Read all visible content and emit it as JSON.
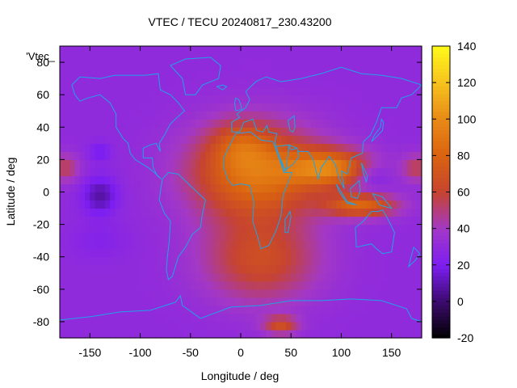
{
  "chart_data": {
    "type": "heatmap",
    "title": "VTEC / TECU 20240817_230.43200",
    "xlabel": "Longitude / deg",
    "ylabel": "Latitude / deg",
    "series_label": "'Vtec_",
    "xlim": [
      -180,
      180
    ],
    "ylim": [
      -90,
      90
    ],
    "x_ticks": [
      -150,
      -100,
      -50,
      0,
      50,
      100,
      150
    ],
    "y_ticks": [
      -80,
      -60,
      -40,
      -20,
      0,
      20,
      40,
      60,
      80
    ],
    "colorbar": {
      "min": -20,
      "max": 140,
      "ticks": [
        -20,
        0,
        20,
        40,
        60,
        80,
        100,
        120,
        140
      ],
      "stops": [
        {
          "value": -20,
          "color": "#000000"
        },
        {
          "value": 0,
          "color": "#3c0a6e"
        },
        {
          "value": 20,
          "color": "#7d1ef2"
        },
        {
          "value": 40,
          "color": "#a338c6"
        },
        {
          "value": 60,
          "color": "#c6442f"
        },
        {
          "value": 80,
          "color": "#d96210"
        },
        {
          "value": 100,
          "color": "#e88a16"
        },
        {
          "value": 120,
          "color": "#f6c21e"
        },
        {
          "value": 140,
          "color": "#fffa1a"
        }
      ]
    },
    "background_vtec": 30,
    "features": [
      {
        "lon": 15,
        "lat": 12,
        "sigma_lon": 45,
        "sigma_lat": 20,
        "value": 60
      },
      {
        "lon": 90,
        "lat": 15,
        "sigma_lon": 28,
        "sigma_lat": 8,
        "value": 55
      },
      {
        "lon": 120,
        "lat": -8,
        "sigma_lon": 25,
        "sigma_lat": 5,
        "value": 50
      },
      {
        "lon": 20,
        "lat": -42,
        "sigma_lon": 40,
        "sigma_lat": 18,
        "value": 35
      },
      {
        "lon": 0,
        "lat": 30,
        "sigma_lon": 20,
        "sigma_lat": 10,
        "value": 20
      },
      {
        "lon": 40,
        "lat": -82,
        "sigma_lon": 12,
        "sigma_lat": 4,
        "value": 35
      },
      {
        "lon": -175,
        "lat": 15,
        "sigma_lon": 10,
        "sigma_lat": 6,
        "value": 25
      },
      {
        "lon": 175,
        "lat": 15,
        "sigma_lon": 10,
        "sigma_lat": 6,
        "value": 25
      },
      {
        "lon": -140,
        "lat": -2,
        "sigma_lon": 12,
        "sigma_lat": 8,
        "value": -22
      },
      {
        "lon": -140,
        "lat": 25,
        "sigma_lon": 8,
        "sigma_lat": 4,
        "value": -12
      },
      {
        "lon": -140,
        "lat": -30,
        "sigma_lon": 20,
        "sigma_lat": 8,
        "value": -6
      },
      {
        "lon": 130,
        "lat": 10,
        "sigma_lon": 12,
        "sigma_lat": 6,
        "value": -15
      }
    ]
  }
}
